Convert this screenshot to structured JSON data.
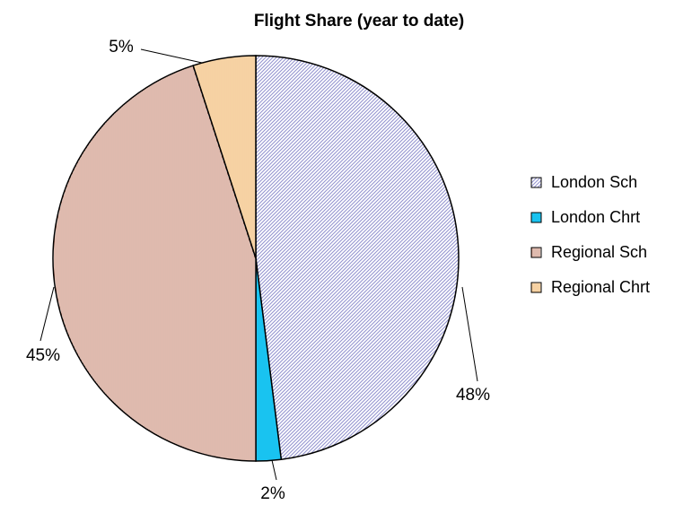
{
  "chart_data": {
    "type": "pie",
    "title": "Flight Share (year to date)",
    "categories": [
      "London Sch",
      "London Chrt",
      "Regional Sch",
      "Regional Chrt"
    ],
    "values": [
      48,
      2,
      45,
      5
    ],
    "value_labels": [
      "48%",
      "2%",
      "45%",
      "5%"
    ],
    "colors": [
      "#7070c0",
      "#19c3f0",
      "#b0583a",
      "#f0b060"
    ],
    "patterns": [
      "diagonal",
      "solid",
      "vertical",
      "grid"
    ],
    "legend": "right"
  }
}
